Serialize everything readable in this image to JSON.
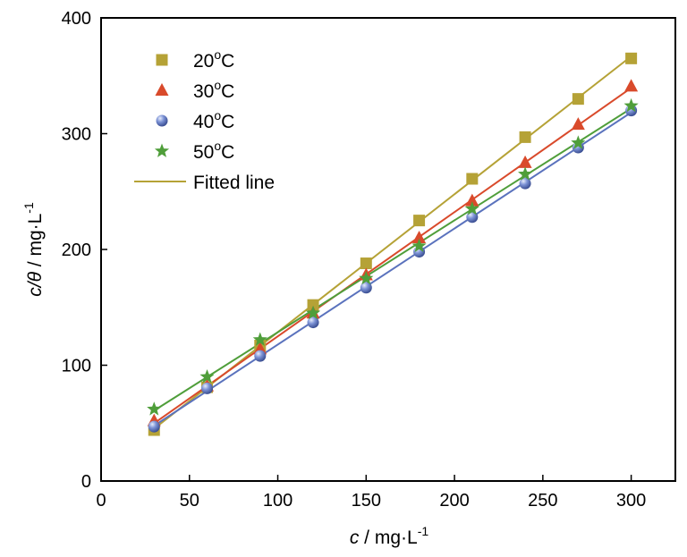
{
  "chart_data": {
    "type": "scatter",
    "xlabel": {
      "var": "c",
      "unit": " / mg·L",
      "exp": "-1"
    },
    "ylabel": {
      "var": "c/θ",
      "unit": " / mg·L",
      "exp": "-1"
    },
    "xlim": [
      0,
      325
    ],
    "ylim": [
      0,
      400
    ],
    "x_ticks": [
      0,
      50,
      100,
      150,
      200,
      250,
      300
    ],
    "y_ticks": [
      0,
      100,
      200,
      300,
      400
    ],
    "x": [
      30,
      60,
      90,
      120,
      150,
      180,
      210,
      240,
      270,
      300
    ],
    "series": [
      {
        "name": "20oC",
        "label_main": "20",
        "label_sup": "o",
        "label_end": "C",
        "color": "#b5a236",
        "marker": "square",
        "values": [
          44,
          81,
          117,
          152,
          188,
          225,
          261,
          297,
          330,
          365
        ]
      },
      {
        "name": "30oC",
        "label_main": "30",
        "label_sup": "o",
        "label_end": "C",
        "color": "#d94a2b",
        "marker": "triangle",
        "values": [
          52,
          82,
          114,
          145,
          178,
          210,
          242,
          275,
          308,
          341
        ]
      },
      {
        "name": "40oC",
        "label_main": "40",
        "label_sup": "o",
        "label_end": "C",
        "color": "#5a72bd",
        "marker": "sphere",
        "values": [
          47,
          80,
          108,
          137,
          167,
          198,
          228,
          257,
          288,
          320
        ]
      },
      {
        "name": "50oC",
        "label_main": "50",
        "label_sup": "o",
        "label_end": "C",
        "color": "#4f9e3a",
        "marker": "star",
        "values": [
          62,
          90,
          122,
          145,
          175,
          203,
          235,
          265,
          292,
          324
        ]
      }
    ],
    "fitted_legend": {
      "label": "Fitted line",
      "color": "#b5a236"
    },
    "legend_position": "top-left",
    "grid": false
  }
}
